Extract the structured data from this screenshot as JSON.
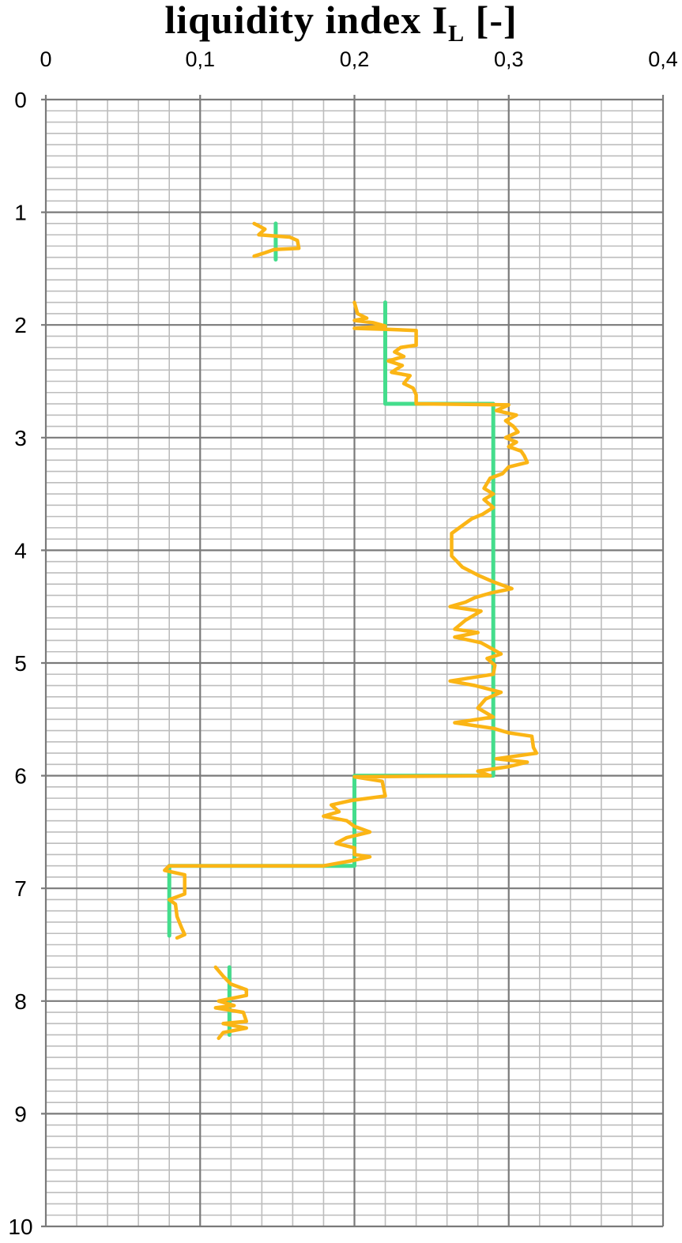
{
  "chart_data": {
    "type": "line",
    "title": {
      "prefix": "liquidity index I",
      "subscript": "L",
      "suffix": " [-]"
    },
    "xlabel": "",
    "ylabel": "",
    "x_axis_position": "top",
    "y_axis_inverted": true,
    "xlim": [
      0,
      0.4
    ],
    "ylim": [
      0,
      10
    ],
    "x_ticks": [
      "0",
      "0,1",
      "0,2",
      "0,3",
      "0,4"
    ],
    "y_ticks": [
      "0",
      "1",
      "2",
      "3",
      "4",
      "5",
      "6",
      "7",
      "8",
      "9",
      "10"
    ],
    "grid": {
      "major_x": 0.1,
      "minor_x": 0.02,
      "major_y": 1,
      "minor_y": 0.1
    },
    "legend": "none",
    "colors": {
      "measured": "#fbb515",
      "design": "#44dd8c",
      "major_grid": "#7a7a7a",
      "minor_grid": "#bdbdbd"
    },
    "series": [
      {
        "key": "design",
        "segments": [
          [
            [
              0.149,
              1.1
            ],
            [
              0.149,
              1.42
            ]
          ],
          [
            [
              0.22,
              1.8
            ],
            [
              0.22,
              2.7
            ],
            [
              0.29,
              2.7
            ],
            [
              0.29,
              6.0
            ],
            [
              0.2,
              6.0
            ],
            [
              0.2,
              6.8
            ],
            [
              0.08,
              6.8
            ],
            [
              0.08,
              7.42
            ]
          ],
          [
            [
              0.119,
              7.7
            ],
            [
              0.119,
              8.3
            ]
          ]
        ]
      },
      {
        "key": "measured",
        "segments": [
          [
            [
              0.135,
              1.1
            ],
            [
              0.142,
              1.15
            ],
            [
              0.138,
              1.2
            ],
            [
              0.158,
              1.22
            ],
            [
              0.163,
              1.25
            ],
            [
              0.164,
              1.32
            ],
            [
              0.148,
              1.33
            ],
            [
              0.142,
              1.36
            ],
            [
              0.135,
              1.39
            ]
          ],
          [
            [
              0.2,
              1.8
            ],
            [
              0.202,
              1.9
            ],
            [
              0.208,
              1.94
            ],
            [
              0.2,
              1.96
            ],
            [
              0.212,
              1.98
            ],
            [
              0.22,
              2.01
            ],
            [
              0.2,
              2.03
            ],
            [
              0.223,
              2.04
            ],
            [
              0.24,
              2.05
            ],
            [
              0.24,
              2.18
            ],
            [
              0.23,
              2.2
            ],
            [
              0.226,
              2.24
            ],
            [
              0.232,
              2.28
            ],
            [
              0.222,
              2.32
            ],
            [
              0.231,
              2.36
            ],
            [
              0.224,
              2.42
            ],
            [
              0.236,
              2.45
            ],
            [
              0.232,
              2.52
            ],
            [
              0.238,
              2.56
            ],
            [
              0.24,
              2.62
            ],
            [
              0.24,
              2.7
            ],
            [
              0.3,
              2.71
            ],
            [
              0.292,
              2.76
            ],
            [
              0.305,
              2.8
            ],
            [
              0.298,
              2.85
            ],
            [
              0.303,
              2.9
            ],
            [
              0.306,
              2.95
            ],
            [
              0.298,
              3.0
            ],
            [
              0.305,
              3.04
            ],
            [
              0.3,
              3.08
            ],
            [
              0.308,
              3.12
            ],
            [
              0.31,
              3.16
            ],
            [
              0.312,
              3.22
            ],
            [
              0.3,
              3.26
            ],
            [
              0.296,
              3.32
            ],
            [
              0.288,
              3.36
            ],
            [
              0.284,
              3.45
            ],
            [
              0.29,
              3.5
            ],
            [
              0.284,
              3.55
            ],
            [
              0.29,
              3.62
            ],
            [
              0.283,
              3.68
            ],
            [
              0.276,
              3.72
            ],
            [
              0.27,
              3.78
            ],
            [
              0.263,
              3.85
            ],
            [
              0.263,
              4.05
            ],
            [
              0.27,
              4.15
            ],
            [
              0.28,
              4.22
            ],
            [
              0.29,
              4.28
            ],
            [
              0.302,
              4.34
            ],
            [
              0.288,
              4.38
            ],
            [
              0.278,
              4.42
            ],
            [
              0.272,
              4.46
            ],
            [
              0.262,
              4.5
            ],
            [
              0.282,
              4.54
            ],
            [
              0.272,
              4.62
            ],
            [
              0.265,
              4.7
            ],
            [
              0.28,
              4.73
            ],
            [
              0.265,
              4.77
            ],
            [
              0.282,
              4.82
            ],
            [
              0.29,
              4.88
            ],
            [
              0.295,
              4.92
            ],
            [
              0.286,
              4.96
            ],
            [
              0.291,
              5.02
            ],
            [
              0.29,
              5.1
            ],
            [
              0.262,
              5.16
            ],
            [
              0.278,
              5.2
            ],
            [
              0.295,
              5.26
            ],
            [
              0.285,
              5.32
            ],
            [
              0.28,
              5.4
            ],
            [
              0.29,
              5.48
            ],
            [
              0.265,
              5.53
            ],
            [
              0.29,
              5.58
            ],
            [
              0.3,
              5.62
            ],
            [
              0.315,
              5.65
            ],
            [
              0.316,
              5.75
            ],
            [
              0.318,
              5.8
            ],
            [
              0.292,
              5.85
            ],
            [
              0.312,
              5.88
            ],
            [
              0.3,
              5.92
            ],
            [
              0.28,
              5.96
            ],
            [
              0.288,
              6.0
            ],
            [
              0.2,
              6.01
            ],
            [
              0.218,
              6.05
            ],
            [
              0.22,
              6.18
            ],
            [
              0.198,
              6.22
            ],
            [
              0.185,
              6.26
            ],
            [
              0.19,
              6.32
            ],
            [
              0.18,
              6.36
            ],
            [
              0.195,
              6.4
            ],
            [
              0.2,
              6.45
            ],
            [
              0.21,
              6.5
            ],
            [
              0.195,
              6.55
            ],
            [
              0.188,
              6.6
            ],
            [
              0.2,
              6.64
            ],
            [
              0.2,
              6.7
            ],
            [
              0.21,
              6.72
            ],
            [
              0.2,
              6.75
            ],
            [
              0.18,
              6.8
            ],
            [
              0.08,
              6.8
            ],
            [
              0.077,
              6.84
            ],
            [
              0.09,
              6.88
            ],
            [
              0.09,
              7.05
            ],
            [
              0.08,
              7.1
            ],
            [
              0.084,
              7.14
            ],
            [
              0.085,
              7.25
            ],
            [
              0.088,
              7.35
            ],
            [
              0.09,
              7.41
            ],
            [
              0.085,
              7.44
            ]
          ],
          [
            [
              0.11,
              7.7
            ],
            [
              0.115,
              7.78
            ],
            [
              0.12,
              7.85
            ],
            [
              0.13,
              7.9
            ],
            [
              0.13,
              7.95
            ],
            [
              0.112,
              8.0
            ],
            [
              0.122,
              8.04
            ],
            [
              0.11,
              8.06
            ],
            [
              0.128,
              8.1
            ],
            [
              0.13,
              8.18
            ],
            [
              0.115,
              8.2
            ],
            [
              0.13,
              8.24
            ],
            [
              0.115,
              8.28
            ],
            [
              0.112,
              8.33
            ]
          ]
        ]
      }
    ]
  }
}
